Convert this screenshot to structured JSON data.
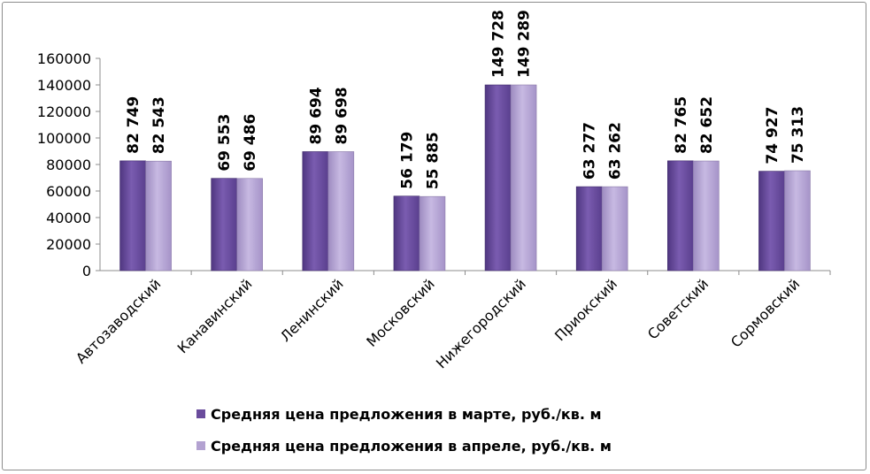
{
  "chart_data": {
    "type": "bar",
    "categories": [
      "Автозаводский",
      "Канавинский",
      "Ленинский",
      "Московский",
      "Нижегородский",
      "Приокский",
      "Советский",
      "Сормовский"
    ],
    "series": [
      {
        "name": "Средняя цена предложения в марте, руб./кв. м",
        "values": [
          82749,
          69553,
          89694,
          56179,
          149728,
          63277,
          82765,
          74927
        ],
        "labels": [
          "82 749",
          "69 553",
          "89 694",
          "56 179",
          "149 728",
          "63 277",
          "82 765",
          "74 927"
        ],
        "color": "#6a4c9c"
      },
      {
        "name": "Средняя цена предложения в апреле, руб./кв. м",
        "values": [
          82543,
          69486,
          89698,
          55885,
          149289,
          63262,
          82652,
          75313
        ],
        "labels": [
          "82 543",
          "69 486",
          "89 698",
          "55 885",
          "149 289",
          "63 262",
          "82 652",
          "75 313"
        ],
        "color": "#b3a2d1"
      }
    ],
    "ylim": [
      0,
      160000
    ],
    "yticks": [
      0,
      20000,
      40000,
      60000,
      80000,
      100000,
      120000,
      140000,
      160000
    ],
    "ytick_labels": [
      "0",
      "20000",
      "40000",
      "60000",
      "80000",
      "100000",
      "120000",
      "140000",
      "160000"
    ],
    "grid": false,
    "legend_position": "bottom",
    "title": "",
    "xlabel": "",
    "ylabel": ""
  }
}
